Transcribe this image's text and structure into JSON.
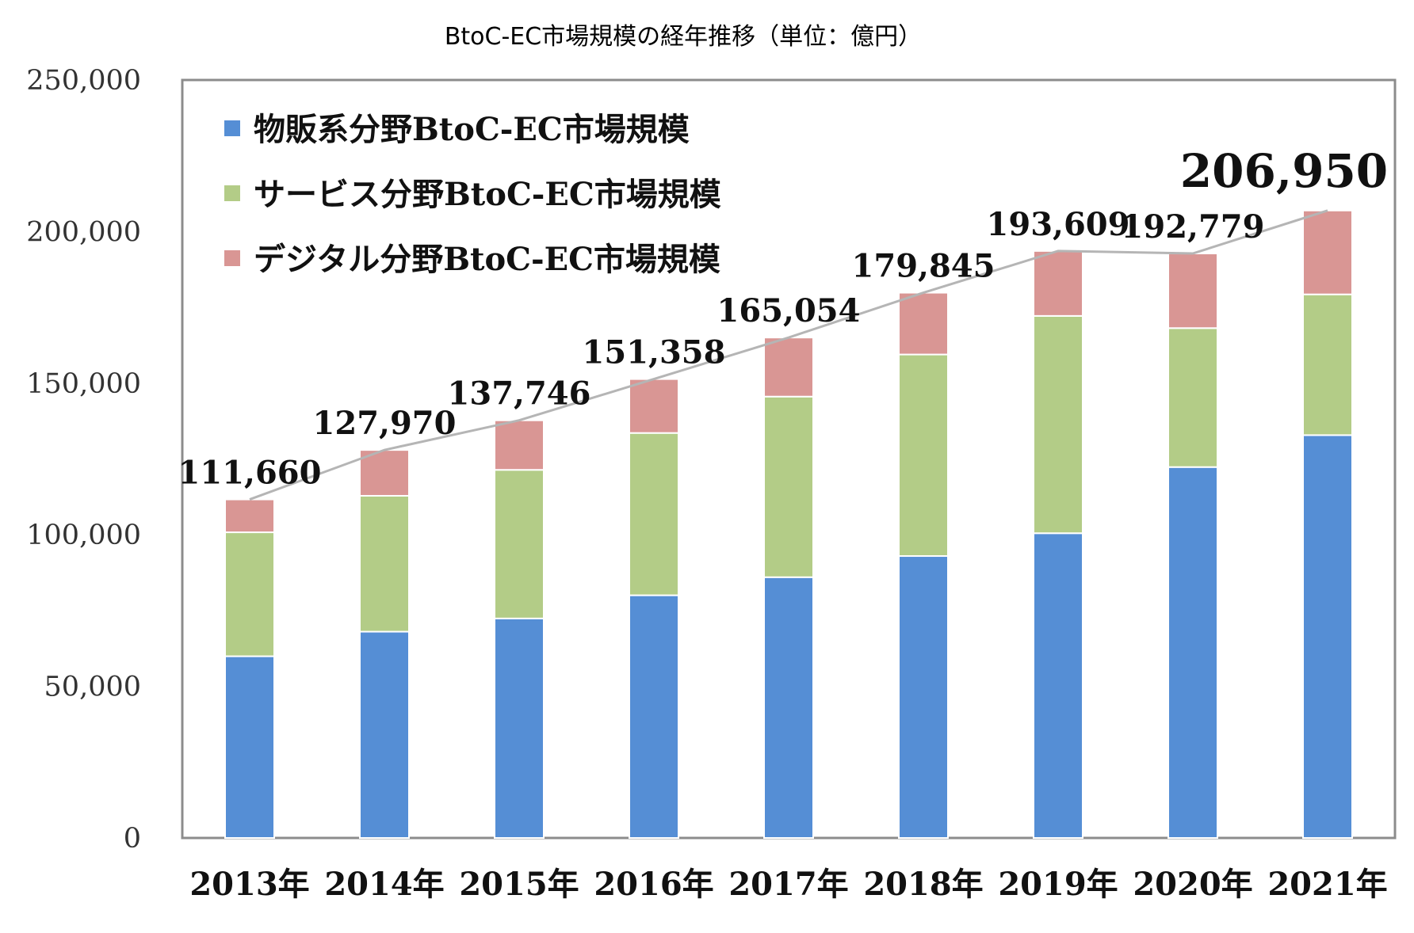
{
  "chart_data": {
    "type": "bar",
    "stacked": true,
    "title": "BtoC-EC市場規模の経年推移（単位：億円）",
    "categories": [
      "2013年",
      "2014年",
      "2015年",
      "2016年",
      "2017年",
      "2018年",
      "2019年",
      "2020年",
      "2021年"
    ],
    "series": [
      {
        "name": "物販系分野BtoC-EC市場規模",
        "color": "#558ED5",
        "values": [
          59931,
          68043,
          72398,
          80043,
          86008,
          92992,
          100515,
          122333,
          132865
        ]
      },
      {
        "name": "サービス分野BtoC-EC市場規模",
        "color": "#B3CC87",
        "values": [
          40890,
          44816,
          49014,
          53532,
          59568,
          66471,
          71672,
          45832,
          46424
        ]
      },
      {
        "name": "デジタル分野BtoC-EC市場規模",
        "color": "#D99694",
        "values": [
          10839,
          15111,
          16334,
          17782,
          19478,
          20382,
          21422,
          24614,
          27661
        ]
      }
    ],
    "total_labels": [
      "111,660",
      "127,970",
      "137,746",
      "151,358",
      "165,054",
      "179,845",
      "193,609",
      "192,779",
      "206,950"
    ],
    "totals": [
      111660,
      127970,
      137746,
      151358,
      165054,
      179845,
      193609,
      192779,
      206950
    ],
    "y_ticks": [
      "0",
      "50,000",
      "100,000",
      "150,000",
      "200,000",
      "250,000"
    ],
    "ylim": [
      0,
      250000
    ],
    "total_line": true,
    "grid": false,
    "legend_position": "top-left inside"
  }
}
